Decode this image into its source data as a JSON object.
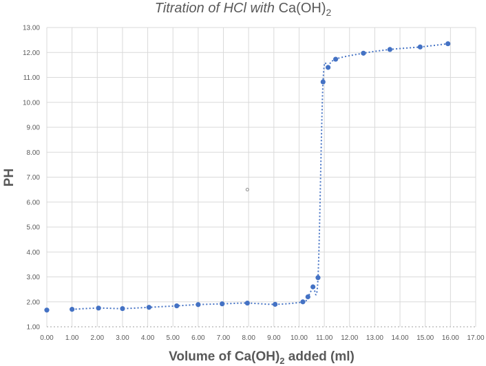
{
  "chart_data": {
    "type": "scatter",
    "title": {
      "italic": "Titration of HCl with ",
      "formula": "Ca(OH)",
      "subscript": "2"
    },
    "xlabel": {
      "before": "Volume of Ca(OH)",
      "subscript": "2",
      "after": " added (ml)"
    },
    "ylabel": "PH",
    "xlim": [
      0,
      17
    ],
    "ylim": [
      1,
      13
    ],
    "grid": true,
    "x_ticks": [
      "0.00",
      "1.00",
      "2.00",
      "3.00",
      "4.00",
      "5.00",
      "6.00",
      "7.00",
      "8.00",
      "9.00",
      "10.00",
      "11.00",
      "12.00",
      "13.00",
      "14.00",
      "15.00",
      "16.00",
      "17.00"
    ],
    "y_ticks": [
      "1.00",
      "2.00",
      "3.00",
      "4.00",
      "5.00",
      "6.00",
      "7.00",
      "8.00",
      "9.00",
      "10.00",
      "11.00",
      "12.00",
      "13.00"
    ],
    "series": [
      {
        "points": [
          [
            0.0,
            1.67
          ],
          [
            1.0,
            1.7
          ],
          [
            2.05,
            1.75
          ],
          [
            3.0,
            1.73
          ],
          [
            4.05,
            1.78
          ],
          [
            5.15,
            1.84
          ],
          [
            6.0,
            1.89
          ],
          [
            6.95,
            1.92
          ],
          [
            7.95,
            1.95
          ],
          [
            9.05,
            1.9
          ],
          [
            10.15,
            2.0
          ],
          [
            10.35,
            2.2
          ],
          [
            10.55,
            2.6
          ],
          [
            10.75,
            2.97
          ],
          [
            10.95,
            10.82
          ],
          [
            11.15,
            11.4
          ],
          [
            11.45,
            11.73
          ],
          [
            12.55,
            11.97
          ],
          [
            13.6,
            12.12
          ],
          [
            14.8,
            12.22
          ],
          [
            15.9,
            12.35
          ]
        ]
      }
    ],
    "colors": {
      "marker": "#4472c4",
      "trend": "#4472c4",
      "grid": "#d9d9d9",
      "text": "#595959"
    },
    "stray_marker": [
      7.95,
      6.5
    ]
  }
}
